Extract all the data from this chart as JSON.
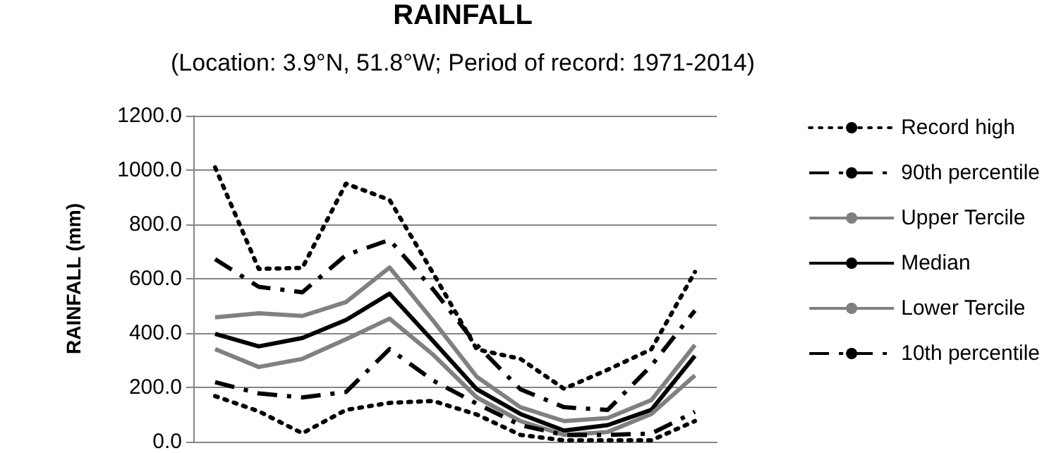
{
  "chart_data": {
    "type": "line",
    "title": "RAINFALL",
    "subtitle": "(Location: 3.9°N, 51.8°W; Period of record: 1971-2014)",
    "ylabel": "RAINFALL (mm)",
    "categories": [
      null,
      null,
      null,
      null,
      null,
      null,
      null,
      null,
      null,
      null,
      null,
      null
    ],
    "ylim": [
      0,
      1200
    ],
    "yticks": [
      {
        "value": 0,
        "label": "0.0"
      },
      {
        "value": 200,
        "label": "200.0"
      },
      {
        "value": 400,
        "label": "400.0"
      },
      {
        "value": 600,
        "label": "600.0"
      },
      {
        "value": 800,
        "label": "800.0"
      },
      {
        "value": 1000,
        "label": "1000.0"
      },
      {
        "value": 1200,
        "label": "1200.0"
      }
    ],
    "grid": "y",
    "legend": "right",
    "marker": "none",
    "series": [
      {
        "name": "Record high",
        "color": "#000000",
        "line_style": "dotted",
        "values": [
          1010,
          636,
          640,
          950,
          890,
          620,
          340,
          305,
          195,
          265,
          340,
          625
        ]
      },
      {
        "name": "90th percentile",
        "color": "#000000",
        "line_style": "dashed",
        "values": [
          672,
          570,
          550,
          687,
          743,
          560,
          356,
          193,
          127,
          117,
          280,
          483
        ]
      },
      {
        "name": "Upper Tercile",
        "color": "#808080",
        "line_style": "solid",
        "values": [
          458,
          473,
          463,
          514,
          641,
          445,
          239,
          127,
          76,
          87,
          153,
          356
        ]
      },
      {
        "name": "Median",
        "color": "#000000",
        "line_style": "solid",
        "values": [
          397,
          351,
          382,
          448,
          545,
          370,
          193,
          102,
          41,
          61,
          117,
          316
        ]
      },
      {
        "name": "Lower Tercile",
        "color": "#808080",
        "line_style": "solid",
        "values": [
          341,
          275,
          305,
          377,
          453,
          320,
          163,
          76,
          25,
          36,
          102,
          244
        ]
      },
      {
        "name": "10th percentile",
        "color": "#000000",
        "line_style": "dashed",
        "values": [
          219,
          178,
          163,
          183,
          341,
          225,
          140,
          61,
          25,
          25,
          30,
          110
        ]
      },
      {
        "color": "#000000",
        "line_style": "dotted",
        "values": [
          168,
          112,
          31,
          117,
          143,
          150,
          100,
          25,
          5,
          5,
          5,
          76
        ]
      }
    ]
  }
}
